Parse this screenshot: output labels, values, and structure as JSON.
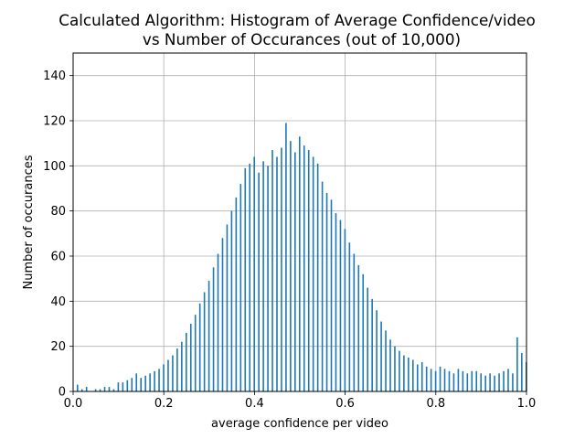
{
  "chart_data": {
    "type": "bar",
    "title_line1": "Calculated Algorithm: Histogram of Average Confidence/video",
    "title_line2": "vs Number of Occurances (out of 10,000)",
    "xlabel": "average confidence per video",
    "ylabel": "Number of occurances",
    "xlim": [
      0.0,
      1.0
    ],
    "ylim": [
      0,
      150
    ],
    "x_ticks": [
      0.0,
      0.2,
      0.4,
      0.6,
      0.8,
      1.0
    ],
    "x_tick_labels": [
      "0.0",
      "0.2",
      "0.4",
      "0.6",
      "0.8",
      "1.0"
    ],
    "y_ticks": [
      0,
      20,
      40,
      60,
      80,
      100,
      120,
      140
    ],
    "y_tick_labels": [
      "0",
      "20",
      "40",
      "60",
      "80",
      "100",
      "120",
      "140"
    ],
    "grid": true,
    "bar_color": "#1f77b4",
    "series": [
      {
        "x": [
          0.01,
          0.02,
          0.03,
          0.04,
          0.05,
          0.06,
          0.07,
          0.08,
          0.09,
          0.1,
          0.11,
          0.12,
          0.13,
          0.14,
          0.15,
          0.16,
          0.17,
          0.18,
          0.19,
          0.2,
          0.21,
          0.22,
          0.23,
          0.24,
          0.25,
          0.26,
          0.27,
          0.28,
          0.29,
          0.3,
          0.31,
          0.32,
          0.33,
          0.34,
          0.35,
          0.36,
          0.37,
          0.38,
          0.39,
          0.4,
          0.41,
          0.42,
          0.43,
          0.44,
          0.45,
          0.46,
          0.47,
          0.48,
          0.49,
          0.5,
          0.51,
          0.52,
          0.53,
          0.54,
          0.55,
          0.56,
          0.57,
          0.58,
          0.59,
          0.6,
          0.61,
          0.62,
          0.63,
          0.64,
          0.65,
          0.66,
          0.67,
          0.68,
          0.69,
          0.7,
          0.71,
          0.72,
          0.73,
          0.74,
          0.75,
          0.76,
          0.77,
          0.78,
          0.79,
          0.8,
          0.81,
          0.82,
          0.83,
          0.84,
          0.85,
          0.86,
          0.87,
          0.88,
          0.89,
          0.9,
          0.91,
          0.92,
          0.93,
          0.94,
          0.95,
          0.96,
          0.97,
          0.98,
          0.99,
          1.0
        ],
        "values": [
          3,
          1,
          2,
          0,
          1,
          1,
          2,
          2,
          1,
          4,
          4,
          5,
          6,
          8,
          6,
          7,
          8,
          9,
          10,
          12,
          14,
          16,
          19,
          22,
          26,
          30,
          34,
          39,
          44,
          49,
          55,
          61,
          68,
          74,
          80,
          86,
          92,
          99,
          101,
          104,
          97,
          102,
          100,
          107,
          104,
          108,
          119,
          111,
          106,
          113,
          109,
          107,
          104,
          101,
          93,
          88,
          85,
          79,
          76,
          72,
          66,
          61,
          56,
          52,
          46,
          41,
          36,
          31,
          27,
          23,
          20,
          18,
          16,
          15,
          14,
          12,
          13,
          11,
          10,
          9,
          11,
          10,
          9,
          8,
          10,
          9,
          8,
          9,
          9,
          8,
          7,
          8,
          7,
          8,
          9,
          10,
          8,
          24,
          17,
          13
        ]
      }
    ]
  }
}
